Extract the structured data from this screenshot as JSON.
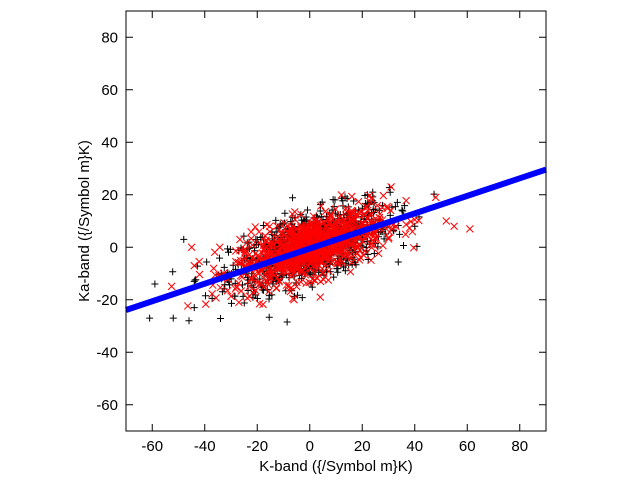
{
  "chart_data": {
    "type": "scatter",
    "xlabel": "K-band ({/Symbol m}K)",
    "ylabel": "Ka-band ({/Symbol m}K)",
    "xlim": [
      -70,
      90
    ],
    "ylim": [
      -70,
      90
    ],
    "x_ticks": [
      -60,
      -40,
      -20,
      0,
      20,
      40,
      60,
      80
    ],
    "y_ticks": [
      -60,
      -40,
      -20,
      0,
      20,
      40,
      60,
      80
    ],
    "grid": false,
    "legend": "none",
    "series": [
      {
        "marker": "plus",
        "color": "#000000",
        "approx_count": 900,
        "approx_center": [
          0,
          0
        ],
        "approx_std": [
          15,
          8
        ],
        "approx_correlation": 0.6,
        "extremes": [
          [
            -61,
            -27
          ],
          [
            -59,
            -14
          ],
          [
            -52,
            -27
          ],
          [
            -48,
            3
          ],
          [
            -46,
            -28
          ],
          [
            -44,
            -13
          ],
          [
            -44,
            -23
          ],
          [
            24,
            21
          ],
          [
            22,
            20
          ],
          [
            40,
            8
          ]
        ]
      },
      {
        "marker": "cross",
        "color": "#ff0000",
        "approx_count": 900,
        "approx_center": [
          0,
          0
        ],
        "approx_std": [
          14,
          7
        ],
        "approx_correlation": 0.6,
        "extremes": [
          [
            -45,
            0
          ],
          [
            -44,
            -7
          ],
          [
            -27,
            -21
          ],
          [
            31,
            23
          ],
          [
            48,
            19
          ],
          [
            55,
            8
          ],
          [
            61,
            7
          ],
          [
            52,
            10
          ],
          [
            -6,
            -20
          ],
          [
            4,
            -19
          ]
        ]
      },
      {
        "type": "line",
        "color": "#0000ff",
        "x": [
          -70,
          90
        ],
        "y": [
          -23.9,
          29.6
        ]
      }
    ]
  }
}
